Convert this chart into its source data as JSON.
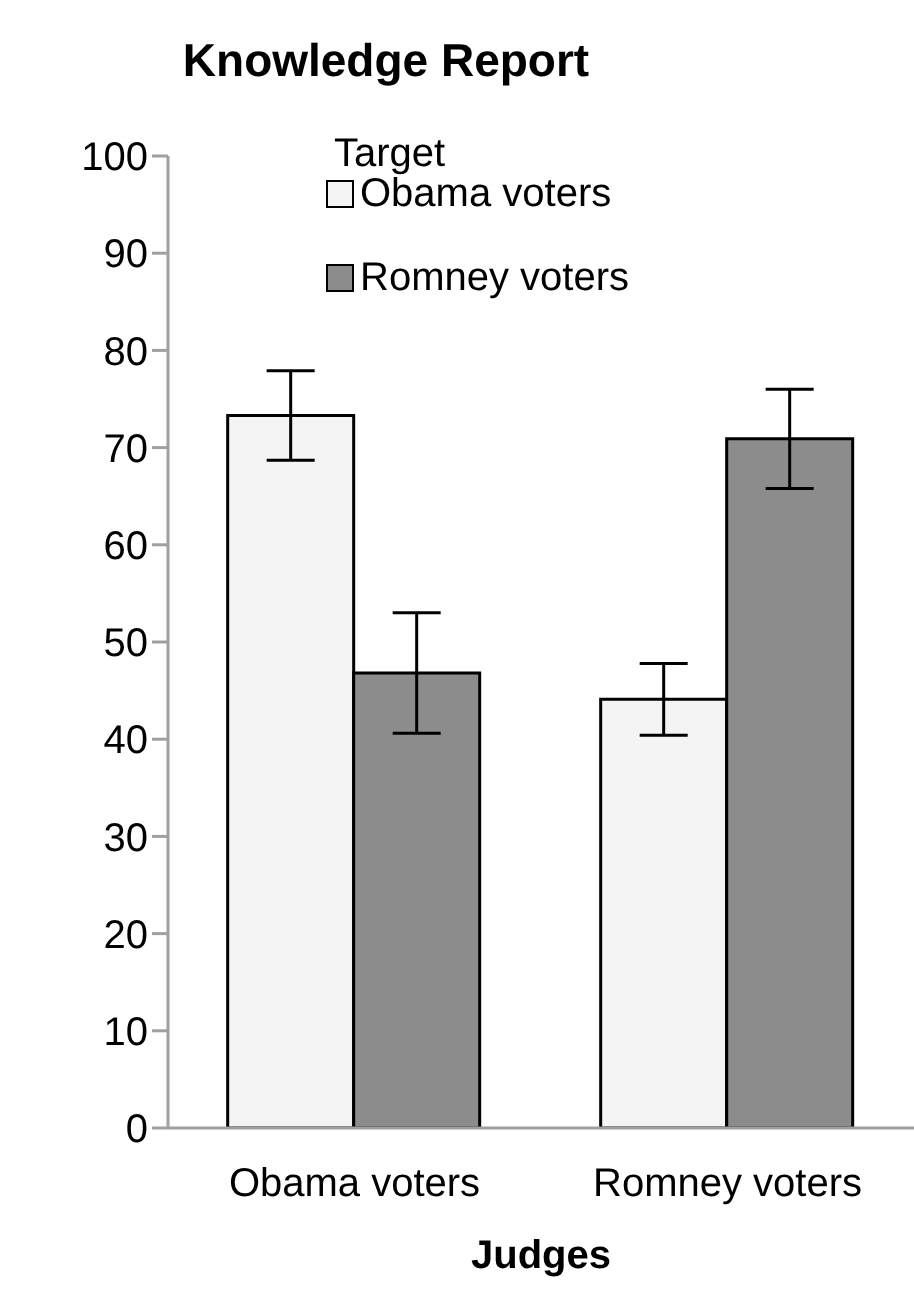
{
  "chart_data": {
    "type": "bar",
    "title": "Knowledge Report",
    "xlabel": "Judges",
    "legend_title": "Target",
    "categories": [
      "Obama voters",
      "Romney voters"
    ],
    "series": [
      {
        "name": "Obama voters",
        "color": "#f4f4f4",
        "values": [
          73.3,
          44.1
        ],
        "errors": [
          4.6,
          3.7
        ]
      },
      {
        "name": "Romney voters",
        "color": "#8c8c8c",
        "values": [
          46.8,
          70.9
        ],
        "errors": [
          6.2,
          5.1
        ]
      }
    ],
    "ylim": [
      0,
      100
    ],
    "yticks": [
      0,
      10,
      20,
      30,
      40,
      50,
      60,
      70,
      80,
      90,
      100
    ],
    "grid": false,
    "legend": "top"
  }
}
